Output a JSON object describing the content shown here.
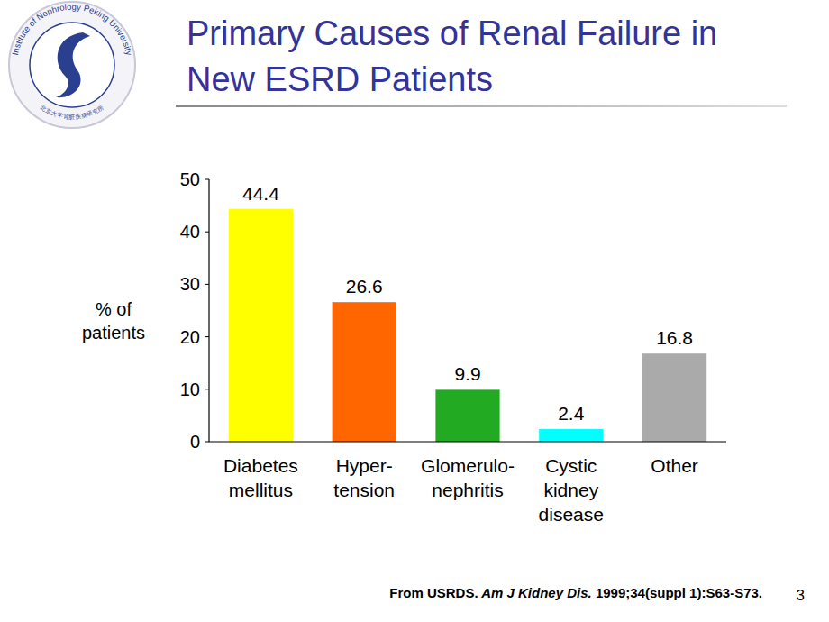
{
  "chart_data": {
    "type": "bar",
    "title": "Primary Causes of Renal Failure in New ESRD Patients",
    "y_label": "% of\npatients",
    "categories": [
      "Diabetes\nmellitus",
      "Hyper-\ntension",
      "Glomerulo-\nnephritis",
      "Cystic\nkidney\ndisease",
      "Other"
    ],
    "values": [
      44.4,
      26.6,
      9.9,
      2.4,
      16.8
    ],
    "colors": [
      "#ffff00",
      "#ff6600",
      "#22aa22",
      "#00ffff",
      "#aaaaaa"
    ],
    "ylim": [
      0,
      50
    ],
    "yticks": [
      0,
      10,
      20,
      30,
      40,
      50
    ],
    "grid": false,
    "data_labels": true
  },
  "slide": {
    "logo_text": "Institute of Nephrology Peking University",
    "logo_text_cn": "北京大学肾脏疾病研究所",
    "source_parts": [
      "From USRDS.",
      "Am J Kidney Dis.",
      "1999;34(suppl 1):S63-S73."
    ],
    "page_number": 3
  }
}
